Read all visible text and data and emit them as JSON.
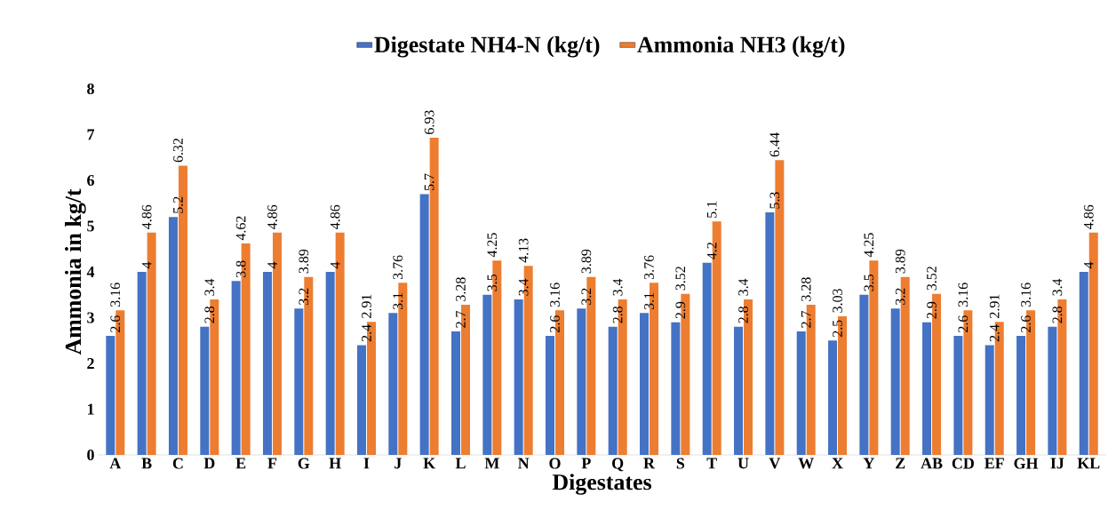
{
  "chart_data": {
    "type": "bar",
    "xlabel": "Digestates",
    "ylabel": "Ammonia in kg/t",
    "categories": [
      "A",
      "B",
      "C",
      "D",
      "E",
      "F",
      "G",
      "H",
      "I",
      "J",
      "K",
      "L",
      "M",
      "N",
      "O",
      "P",
      "Q",
      "R",
      "S",
      "T",
      "U",
      "V",
      "W",
      "X",
      "Y",
      "Z",
      "AB",
      "CD",
      "EF",
      "GH",
      "IJ",
      "KL"
    ],
    "series": [
      {
        "name": "Digestate NH4-N (kg/t)",
        "color": "#4472c4",
        "values": [
          2.6,
          4,
          5.2,
          2.8,
          3.8,
          4,
          3.2,
          4,
          2.4,
          3.1,
          5.7,
          2.7,
          3.5,
          3.4,
          2.6,
          3.2,
          2.8,
          3.1,
          2.9,
          4.2,
          2.8,
          5.3,
          2.7,
          2.5,
          3.5,
          3.2,
          2.9,
          2.6,
          2.4,
          2.6,
          2.8,
          4
        ]
      },
      {
        "name": "Ammonia NH3 (kg/t)",
        "color": "#ed7d31",
        "values": [
          3.16,
          4.86,
          6.32,
          3.4,
          4.62,
          4.86,
          3.89,
          4.86,
          2.91,
          3.76,
          6.93,
          3.28,
          4.25,
          4.13,
          3.16,
          3.89,
          3.4,
          3.76,
          3.52,
          5.1,
          3.4,
          6.44,
          3.28,
          3.03,
          4.25,
          3.89,
          3.52,
          3.16,
          2.91,
          3.16,
          3.4,
          4.86
        ]
      }
    ],
    "ylim": [
      0,
      8
    ],
    "yticks": [
      0,
      1,
      2,
      3,
      4,
      5,
      6,
      7,
      8
    ],
    "legend": "top",
    "data_labels": true
  }
}
